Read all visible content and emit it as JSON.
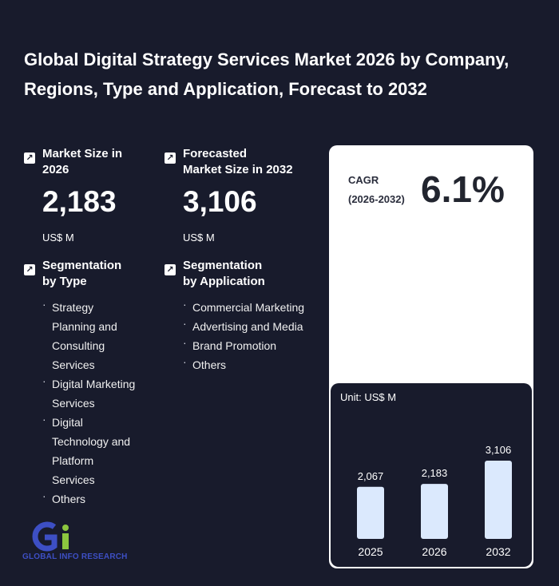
{
  "title": "Global Digital Strategy Services Market 2026 by Company, Regions, Type and Application, Forecast to 2032",
  "market_size": {
    "label_line1": "Market Size in",
    "label_line2": "2026",
    "value": "2,183",
    "unit": "US$ M"
  },
  "forecast_size": {
    "label_line1": "Forecasted",
    "label_line2": "Market Size in 2032",
    "value": "3,106",
    "unit": "US$ M"
  },
  "segmentation_type": {
    "label_line1": "Segmentation",
    "label_line2": "by Type",
    "items": [
      [
        "Strategy",
        "Planning and",
        "Consulting",
        "Services"
      ],
      [
        "Digital Marketing",
        "Services"
      ],
      [
        "Digital",
        "Technology and",
        "Platform",
        "Services"
      ],
      [
        "Others"
      ]
    ]
  },
  "segmentation_application": {
    "label_line1": "Segmentation",
    "label_line2": "by Application",
    "items": [
      "Commercial Marketing",
      "Advertising and Media",
      "Brand Promotion",
      "Others"
    ]
  },
  "cagr": {
    "label_line1": "CAGR",
    "label_line2": "(2026-2032)",
    "value": "6.1%"
  },
  "logo": {
    "text": "GLOBAL INFO RESEARCH"
  },
  "colors": {
    "background": "#181b2c",
    "bar_fill": "#dbe9fd",
    "logo_blue": "#3d4fc4",
    "logo_green": "#8cc63f"
  },
  "chart_data": {
    "type": "bar",
    "unit_label": "Unit: US$ M",
    "categories": [
      "2025",
      "2026",
      "2032"
    ],
    "values": [
      2067,
      2183,
      3106
    ],
    "value_labels": [
      "2,067",
      "2,183",
      "3,106"
    ],
    "ylim": [
      0,
      3106
    ],
    "grid": false
  }
}
